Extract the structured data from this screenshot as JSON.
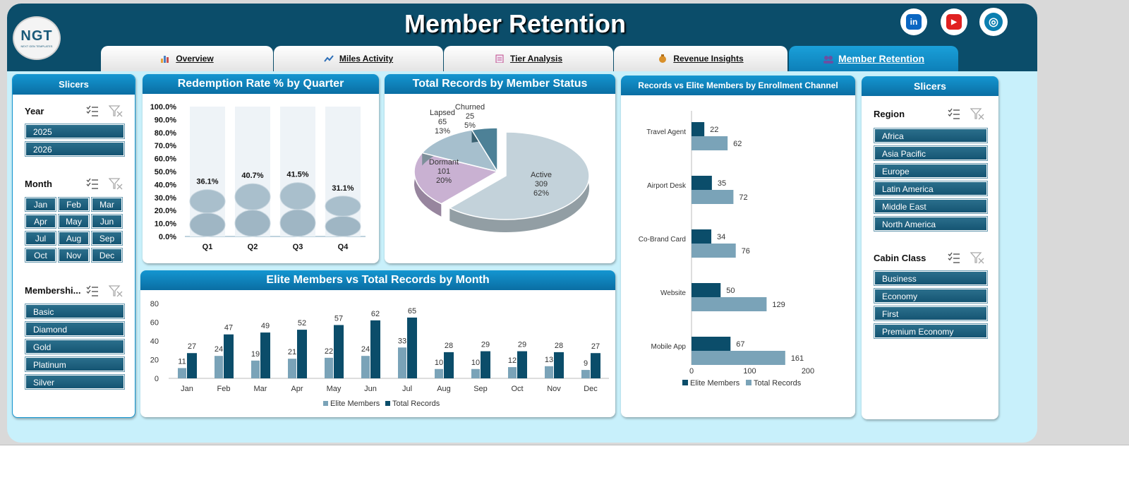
{
  "header": {
    "title": "Member Retention",
    "logo_text": "NGT",
    "logo_subtext": "NEXT GEN TEMPLATES"
  },
  "social": [
    {
      "icon": "linkedin-icon",
      "label": "in",
      "color": "#0a66c2"
    },
    {
      "icon": "youtube-icon",
      "label": "▶",
      "color": "#e02020"
    },
    {
      "icon": "globe-icon",
      "label": "◎",
      "color": "#0b7fb0"
    }
  ],
  "tabs": [
    {
      "label": "Overview",
      "icon": "bar-chart-icon"
    },
    {
      "label": "Miles Activity",
      "icon": "line-chart-icon"
    },
    {
      "label": "Tier Analysis",
      "icon": "clipboard-icon"
    },
    {
      "label": "Revenue Insights",
      "icon": "money-bag-icon"
    },
    {
      "label": "Member Retention",
      "icon": "users-icon",
      "active": true
    }
  ],
  "left_slicers": {
    "title": "Slicers",
    "year": {
      "label": "Year",
      "items": [
        "2025",
        "2026"
      ]
    },
    "month": {
      "label": "Month",
      "items": [
        "Jan",
        "Feb",
        "Mar",
        "Apr",
        "May",
        "Jun",
        "Jul",
        "Aug",
        "Sep",
        "Oct",
        "Nov",
        "Dec"
      ]
    },
    "membership": {
      "label": "Membershi...",
      "items": [
        "Basic",
        "Diamond",
        "Gold",
        "Platinum",
        "Silver"
      ]
    }
  },
  "right_slicers": {
    "title": "Slicers",
    "region": {
      "label": "Region",
      "items": [
        "Africa",
        "Asia Pacific",
        "Europe",
        "Latin America",
        "Middle East",
        "North America"
      ]
    },
    "cabin": {
      "label": "Cabin Class",
      "items": [
        "Business",
        "Economy",
        "First",
        "Premium Economy"
      ]
    }
  },
  "colors": {
    "header": "#0b4d6a",
    "accent": "#1496d1",
    "dark_bar": "#0b4d6a",
    "light_bar": "#7aa3b8",
    "background": "#c8f0fb"
  },
  "chart_data": [
    {
      "type": "bar",
      "title": "Redemption Rate % by Quarter",
      "categories": [
        "Q1",
        "Q2",
        "Q3",
        "Q4"
      ],
      "values": [
        36.1,
        40.7,
        41.5,
        31.1
      ],
      "labels": [
        "36.1%",
        "40.7%",
        "41.5%",
        "31.1%"
      ],
      "ylim": [
        0,
        100
      ],
      "yticks": [
        "0.0%",
        "10.0%",
        "20.0%",
        "30.0%",
        "40.0%",
        "50.0%",
        "60.0%",
        "70.0%",
        "80.0%",
        "90.0%",
        "100.0%"
      ]
    },
    {
      "type": "pie",
      "title": "Total Records by Member Status",
      "slices": [
        {
          "name": "Active",
          "value": 309,
          "pct": "62%",
          "color": "#c3d2da"
        },
        {
          "name": "Dormant",
          "value": 101,
          "pct": "20%",
          "color": "#c9b1d2"
        },
        {
          "name": "Lapsed",
          "value": 65,
          "pct": "13%",
          "color": "#a6bfcd"
        },
        {
          "name": "Churned",
          "value": 25,
          "pct": "5%",
          "color": "#4d8197"
        }
      ]
    },
    {
      "type": "bar",
      "title": "Records vs Elite Members by Enrollment Channel",
      "categories": [
        "Travel Agent",
        "Airport Desk",
        "Co-Brand Card",
        "Website",
        "Mobile App"
      ],
      "series": [
        {
          "name": "Elite Members",
          "values": [
            22,
            35,
            34,
            50,
            67
          ]
        },
        {
          "name": "Total Records",
          "values": [
            62,
            72,
            76,
            129,
            161
          ]
        }
      ],
      "xlim": [
        0,
        200
      ],
      "xticks": [
        "0",
        "100",
        "200"
      ]
    },
    {
      "type": "bar",
      "title": "Elite Members vs Total Records by Month",
      "categories": [
        "Jan",
        "Feb",
        "Mar",
        "Apr",
        "May",
        "Jun",
        "Jul",
        "Aug",
        "Sep",
        "Oct",
        "Nov",
        "Dec"
      ],
      "series": [
        {
          "name": "Elite Members",
          "values": [
            11,
            24,
            19,
            21,
            22,
            24,
            33,
            10,
            10,
            12,
            13,
            9
          ]
        },
        {
          "name": "Total Records",
          "values": [
            27,
            47,
            49,
            52,
            57,
            62,
            65,
            28,
            29,
            29,
            28,
            27
          ]
        }
      ],
      "ylim": [
        0,
        80
      ],
      "yticks": [
        "0",
        "20",
        "40",
        "60",
        "80"
      ]
    }
  ]
}
